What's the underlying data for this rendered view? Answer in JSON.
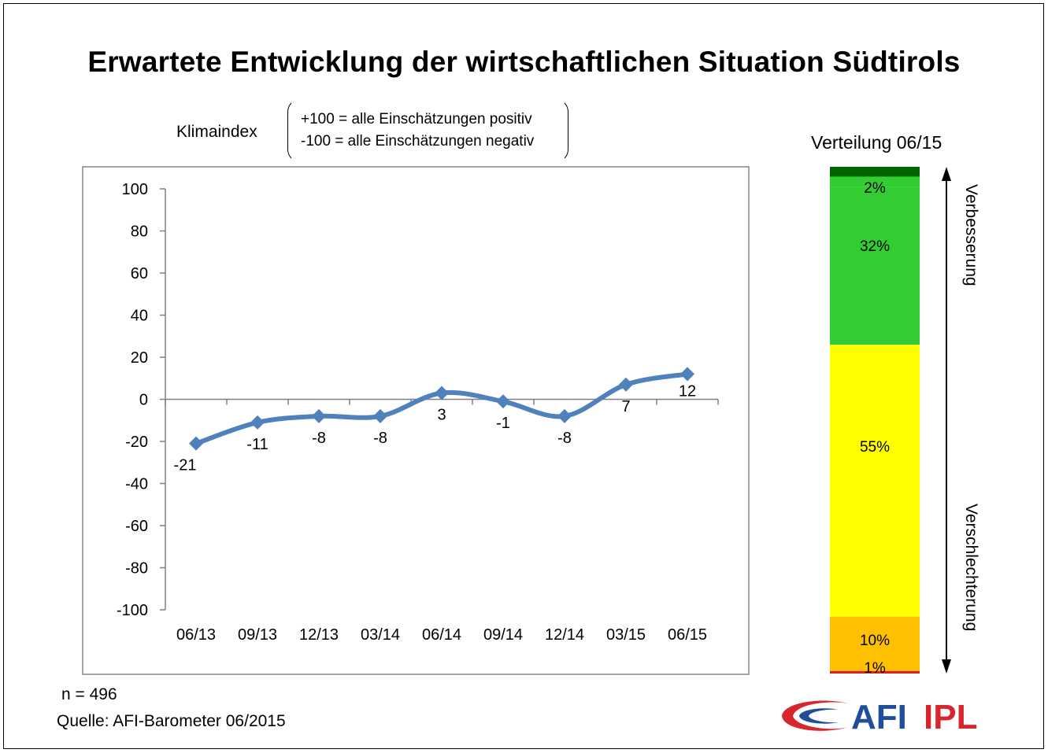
{
  "title": "Erwartete Entwicklung der wirtschaftlichen Situation Südtirols",
  "index_label": "Klimaindex",
  "legend": {
    "positive": "+100 = alle Einschätzungen positiv",
    "negative": "-100 = alle Einschätzungen negativ"
  },
  "chart_data": [
    {
      "type": "line",
      "categories": [
        "06/13",
        "09/13",
        "12/13",
        "03/14",
        "06/14",
        "09/14",
        "12/14",
        "03/15",
        "06/15"
      ],
      "values": [
        -21,
        -11,
        -8,
        -8,
        3,
        -1,
        -8,
        7,
        12
      ],
      "data_labels": [
        "-21",
        "-11",
        "-8",
        "-8",
        "3",
        "-1",
        "-8",
        "7",
        "12"
      ],
      "ylim": [
        -100,
        100
      ],
      "yticks": [
        "100",
        "80",
        "60",
        "40",
        "20",
        "0",
        "-20",
        "-40",
        "-60",
        "-80",
        "-100"
      ],
      "grid": false,
      "line_color": "#4f81bd",
      "smooth": true
    },
    {
      "type": "bar",
      "stacked": true,
      "title": "Verteilung 06/15",
      "segments_top_to_bottom": [
        {
          "value": 2,
          "label": "",
          "color": "#006400"
        },
        {
          "value": 2,
          "label": "2%",
          "color": "#33cc33"
        },
        {
          "value": 32,
          "label": "32%",
          "color": "#33cc33"
        },
        {
          "value": 55,
          "label": "55%",
          "color": "#ffff00"
        },
        {
          "value": 10,
          "label": "10%",
          "color": "#ffc000"
        },
        {
          "value": 1,
          "label": "1%",
          "color": "#ffc000"
        },
        {
          "value": 0.5,
          "label": "",
          "color": "#e02020"
        }
      ],
      "arrow_top_label": "Verbesserung",
      "arrow_bottom_label": "Verschlechterung"
    }
  ],
  "footer": {
    "n": "n = 496",
    "source": "Quelle: AFI-Barometer 06/2015"
  },
  "logo": {
    "text": "AFI",
    "text2": "IPL",
    "color_red": "#d7262c",
    "color_blue": "#1f4e9b"
  }
}
